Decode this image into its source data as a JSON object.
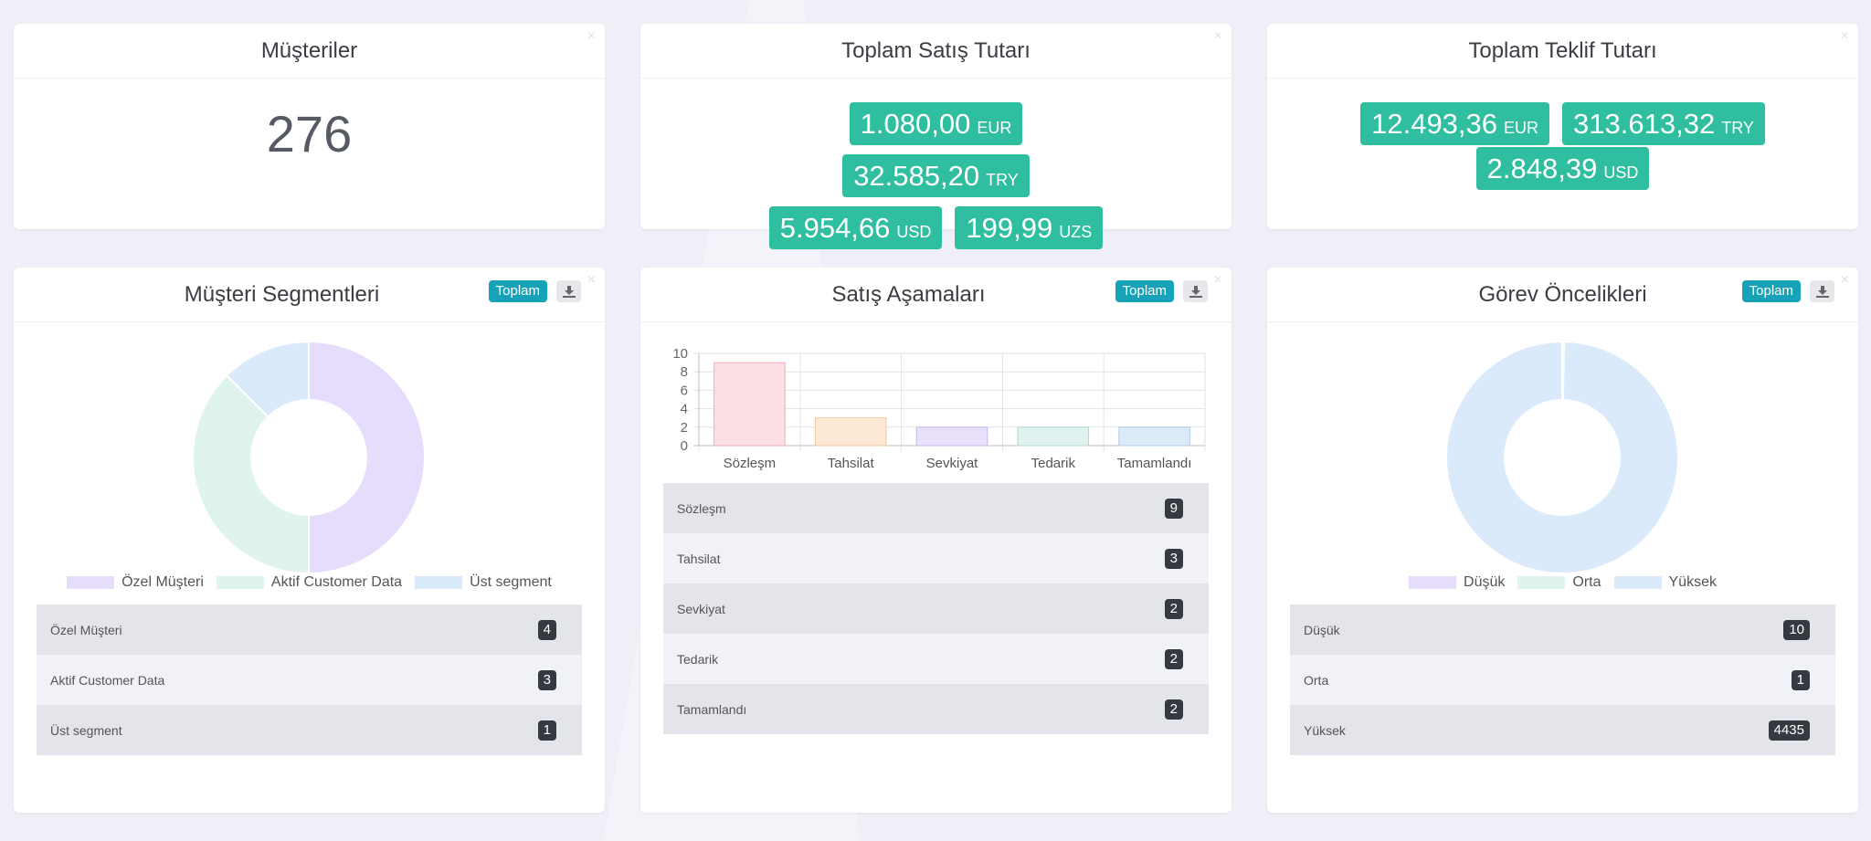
{
  "colors": {
    "accent_teal": "#2fbfa0",
    "pill_blue": "#17a2b8",
    "badge_dark": "#343a40"
  },
  "customers": {
    "title": "Müşteriler",
    "count": "276"
  },
  "sales_total": {
    "title": "Toplam Satış Tutarı",
    "amounts": [
      {
        "value": "1.080,00",
        "currency": "EUR"
      },
      {
        "value": "32.585,20",
        "currency": "TRY"
      },
      {
        "value": "5.954,66",
        "currency": "USD"
      },
      {
        "value": "199,99",
        "currency": "UZS"
      }
    ]
  },
  "offer_total": {
    "title": "Toplam Teklif Tutarı",
    "amounts": [
      {
        "value": "12.493,36",
        "currency": "EUR"
      },
      {
        "value": "313.613,32",
        "currency": "TRY"
      },
      {
        "value": "2.848,39",
        "currency": "USD"
      }
    ]
  },
  "segments": {
    "title": "Müşteri Segmentleri",
    "total_label": "Toplam",
    "download_icon": "download-icon",
    "legend": [
      {
        "label": "Özel Müşteri",
        "color": "#e6dcfb"
      },
      {
        "label": "Aktif Customer Data",
        "color": "#dff3ef"
      },
      {
        "label": "Üst segment",
        "color": "#dbeafa"
      }
    ],
    "rows": [
      {
        "label": "Özel Müşteri",
        "value": "4"
      },
      {
        "label": "Aktif Customer Data",
        "value": "3"
      },
      {
        "label": "Üst segment",
        "value": "1"
      }
    ]
  },
  "stages": {
    "title": "Satış Aşamaları",
    "total_label": "Toplam",
    "download_icon": "download-icon",
    "rows": [
      {
        "label": "Sözleşm",
        "value": "9"
      },
      {
        "label": "Tahsilat",
        "value": "3"
      },
      {
        "label": "Sevkiyat",
        "value": "2"
      },
      {
        "label": "Tedarik",
        "value": "2"
      },
      {
        "label": "Tamamlandı",
        "value": "2"
      }
    ]
  },
  "priorities": {
    "title": "Görev Öncelikleri",
    "total_label": "Toplam",
    "download_icon": "download-icon",
    "legend": [
      {
        "label": "Düşük",
        "color": "#e6dcfb"
      },
      {
        "label": "Orta",
        "color": "#dff3ef"
      },
      {
        "label": "Yüksek",
        "color": "#dbeafa"
      }
    ],
    "rows": [
      {
        "label": "Düşük",
        "value": "10"
      },
      {
        "label": "Orta",
        "value": "1"
      },
      {
        "label": "Yüksek",
        "value": "4435"
      }
    ]
  },
  "chart_data": [
    {
      "type": "pie",
      "donut": true,
      "categories": [
        "Özel Müşteri",
        "Aktif Customer Data",
        "Üst segment"
      ],
      "values": [
        4,
        3,
        1
      ],
      "colors": [
        "#e6dcfb",
        "#dff3ef",
        "#dbeafa"
      ],
      "legend": "bottom"
    },
    {
      "type": "bar",
      "categories": [
        "Sözleşm",
        "Tahsilat",
        "Sevkiyat",
        "Tedarik",
        "Tamamlandı"
      ],
      "values": [
        9,
        3,
        2,
        2,
        2
      ],
      "ylim": [
        0,
        10
      ],
      "yticks": [
        0,
        2,
        4,
        6,
        8,
        10
      ],
      "colors": [
        "#fde0e5",
        "#fde9d6",
        "#e9e0fb",
        "#e0f2ef",
        "#ddeaf8"
      ],
      "border_colors": [
        "#f3a6b5",
        "#f5c89c",
        "#c8b6f1",
        "#a9dccf",
        "#a9cdef"
      ],
      "grid": true
    },
    {
      "type": "pie",
      "donut": true,
      "categories": [
        "Düşük",
        "Orta",
        "Yüksek"
      ],
      "values": [
        10,
        1,
        4435
      ],
      "colors": [
        "#e6dcfb",
        "#dff3ef",
        "#dbeafa"
      ],
      "legend": "bottom"
    }
  ]
}
